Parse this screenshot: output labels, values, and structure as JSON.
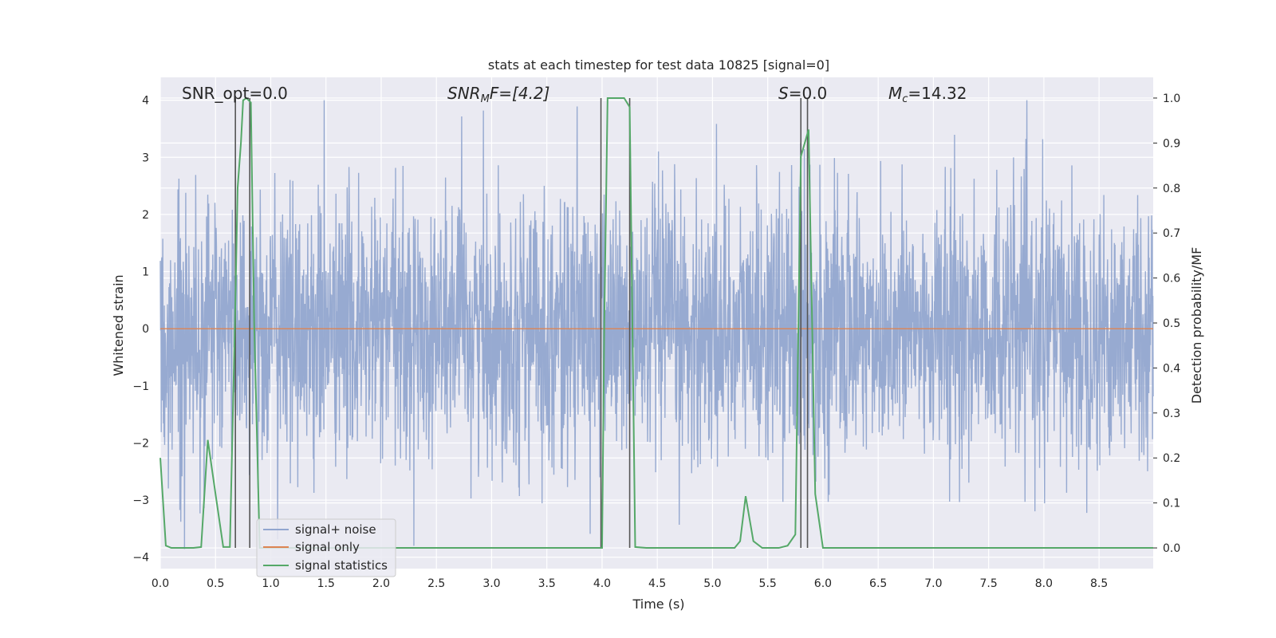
{
  "chart_data": {
    "type": "line",
    "title": "stats at each timestep for test data 10825 [signal=0]",
    "xlabel": "Time (s)",
    "ylabel": "Whitened strain",
    "y2label": "Detection probability/MF",
    "xlim": [
      0.0,
      8.99
    ],
    "ylim": [
      -4.2,
      4.4
    ],
    "y2lim": [
      -0.046,
      1.046
    ],
    "xticks": [
      "0.0",
      "0.5",
      "1.0",
      "1.5",
      "2.0",
      "2.5",
      "3.0",
      "3.5",
      "4.0",
      "4.5",
      "5.0",
      "5.5",
      "6.0",
      "6.5",
      "7.0",
      "7.5",
      "8.0",
      "8.5"
    ],
    "yticks": [
      "4",
      "3",
      "2",
      "1",
      "0",
      "−1",
      "−2",
      "−3",
      "−4"
    ],
    "y2ticks": [
      "1.0",
      "0.9",
      "0.8",
      "0.7",
      "0.6",
      "0.5",
      "0.4",
      "0.3",
      "0.2",
      "0.1",
      "0.0"
    ],
    "grid": true,
    "legend": {
      "position": "lower-left",
      "entries": [
        "signal+ noise",
        "signal only",
        "signal statistics"
      ]
    },
    "annotations": {
      "snr_opt": "SNR_opt=0.0",
      "snr_mf_base": "SNR",
      "snr_mf_sub": "M",
      "snr_mf_rest": "F=[4.2]",
      "s_italic": "S",
      "s_rest": "=0.0",
      "mc_base": "M",
      "mc_sub": "c",
      "mc_rest": "=14.32"
    },
    "colors": {
      "signal_noise": "#92a6cf",
      "signal_only": "#dd8452",
      "statistics": "#55a868",
      "vlines": "#555555",
      "axes_bg": "#eaeaf2",
      "grid": "#ffffff"
    },
    "series": [
      {
        "name": "signal+ noise",
        "axis": "left",
        "style": "noise",
        "values": {
          "duration": 8.99,
          "median_extent": 1.6,
          "peak_extent": 4.0
        }
      },
      {
        "name": "signal only",
        "axis": "left",
        "x": [
          0.0,
          8.99
        ],
        "y": [
          0.0,
          0.0
        ]
      },
      {
        "name": "signal statistics",
        "axis": "right",
        "x": [
          0.0,
          0.05,
          0.1,
          0.2,
          0.3,
          0.37,
          0.43,
          0.5,
          0.57,
          0.63,
          0.68,
          0.7,
          0.73,
          0.75,
          0.78,
          0.82,
          0.85,
          0.9,
          1.0,
          2.0,
          3.0,
          4.0,
          4.02,
          4.05,
          4.1,
          4.2,
          4.25,
          4.3,
          4.4,
          5.0,
          5.2,
          5.25,
          5.3,
          5.37,
          5.45,
          5.6,
          5.68,
          5.75,
          5.8,
          5.87,
          5.93,
          6.0,
          7.0,
          8.0,
          8.99
        ],
        "y": [
          0.2,
          0.005,
          0.0,
          0.0,
          0.0,
          0.002,
          0.24,
          0.12,
          0.002,
          0.002,
          0.55,
          0.8,
          0.9,
          0.995,
          1.0,
          0.99,
          0.5,
          0.0,
          0.0,
          0.0,
          0.0,
          0.0,
          0.5,
          1.0,
          1.0,
          1.0,
          0.98,
          0.002,
          0.0,
          0.0,
          0.0,
          0.015,
          0.115,
          0.015,
          0.0,
          0.0,
          0.005,
          0.03,
          0.87,
          0.93,
          0.12,
          0.0,
          0.0,
          0.0,
          0.0
        ]
      }
    ],
    "vlines_x": [
      0.68,
      0.81,
      3.99,
      4.25,
      5.8,
      5.86
    ]
  }
}
